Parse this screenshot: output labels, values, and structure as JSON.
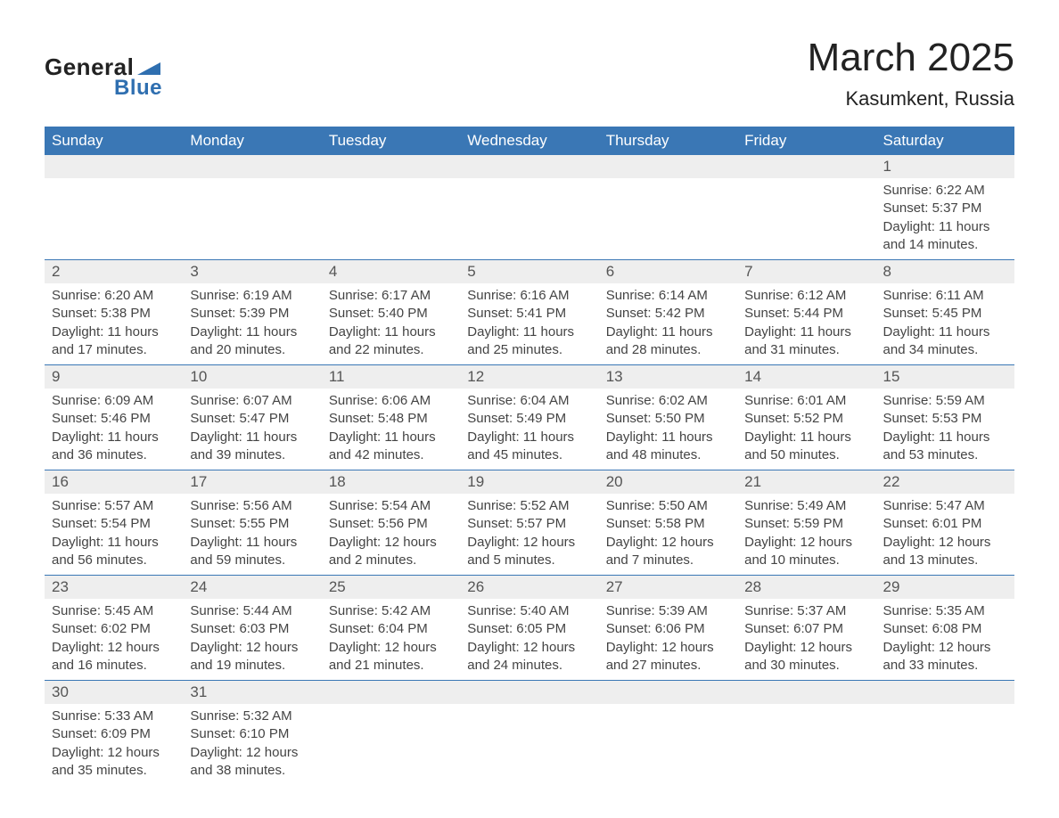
{
  "logo": {
    "text_general": "General",
    "text_blue": "Blue",
    "shape_color": "#2f6fb0"
  },
  "header": {
    "month_title": "March 2025",
    "location": "Kasumkent, Russia"
  },
  "weekday_headers": [
    "Sunday",
    "Monday",
    "Tuesday",
    "Wednesday",
    "Thursday",
    "Friday",
    "Saturday"
  ],
  "colors": {
    "header_bg": "#3a77b5",
    "header_text": "#ffffff",
    "daynum_bg": "#eeeeee",
    "border": "#3a77b5",
    "body_text": "#444444"
  },
  "weeks": [
    [
      null,
      null,
      null,
      null,
      null,
      null,
      {
        "n": "1",
        "sr": "Sunrise: 6:22 AM",
        "ss": "Sunset: 5:37 PM",
        "dl": "Daylight: 11 hours and 14 minutes."
      }
    ],
    [
      {
        "n": "2",
        "sr": "Sunrise: 6:20 AM",
        "ss": "Sunset: 5:38 PM",
        "dl": "Daylight: 11 hours and 17 minutes."
      },
      {
        "n": "3",
        "sr": "Sunrise: 6:19 AM",
        "ss": "Sunset: 5:39 PM",
        "dl": "Daylight: 11 hours and 20 minutes."
      },
      {
        "n": "4",
        "sr": "Sunrise: 6:17 AM",
        "ss": "Sunset: 5:40 PM",
        "dl": "Daylight: 11 hours and 22 minutes."
      },
      {
        "n": "5",
        "sr": "Sunrise: 6:16 AM",
        "ss": "Sunset: 5:41 PM",
        "dl": "Daylight: 11 hours and 25 minutes."
      },
      {
        "n": "6",
        "sr": "Sunrise: 6:14 AM",
        "ss": "Sunset: 5:42 PM",
        "dl": "Daylight: 11 hours and 28 minutes."
      },
      {
        "n": "7",
        "sr": "Sunrise: 6:12 AM",
        "ss": "Sunset: 5:44 PM",
        "dl": "Daylight: 11 hours and 31 minutes."
      },
      {
        "n": "8",
        "sr": "Sunrise: 6:11 AM",
        "ss": "Sunset: 5:45 PM",
        "dl": "Daylight: 11 hours and 34 minutes."
      }
    ],
    [
      {
        "n": "9",
        "sr": "Sunrise: 6:09 AM",
        "ss": "Sunset: 5:46 PM",
        "dl": "Daylight: 11 hours and 36 minutes."
      },
      {
        "n": "10",
        "sr": "Sunrise: 6:07 AM",
        "ss": "Sunset: 5:47 PM",
        "dl": "Daylight: 11 hours and 39 minutes."
      },
      {
        "n": "11",
        "sr": "Sunrise: 6:06 AM",
        "ss": "Sunset: 5:48 PM",
        "dl": "Daylight: 11 hours and 42 minutes."
      },
      {
        "n": "12",
        "sr": "Sunrise: 6:04 AM",
        "ss": "Sunset: 5:49 PM",
        "dl": "Daylight: 11 hours and 45 minutes."
      },
      {
        "n": "13",
        "sr": "Sunrise: 6:02 AM",
        "ss": "Sunset: 5:50 PM",
        "dl": "Daylight: 11 hours and 48 minutes."
      },
      {
        "n": "14",
        "sr": "Sunrise: 6:01 AM",
        "ss": "Sunset: 5:52 PM",
        "dl": "Daylight: 11 hours and 50 minutes."
      },
      {
        "n": "15",
        "sr": "Sunrise: 5:59 AM",
        "ss": "Sunset: 5:53 PM",
        "dl": "Daylight: 11 hours and 53 minutes."
      }
    ],
    [
      {
        "n": "16",
        "sr": "Sunrise: 5:57 AM",
        "ss": "Sunset: 5:54 PM",
        "dl": "Daylight: 11 hours and 56 minutes."
      },
      {
        "n": "17",
        "sr": "Sunrise: 5:56 AM",
        "ss": "Sunset: 5:55 PM",
        "dl": "Daylight: 11 hours and 59 minutes."
      },
      {
        "n": "18",
        "sr": "Sunrise: 5:54 AM",
        "ss": "Sunset: 5:56 PM",
        "dl": "Daylight: 12 hours and 2 minutes."
      },
      {
        "n": "19",
        "sr": "Sunrise: 5:52 AM",
        "ss": "Sunset: 5:57 PM",
        "dl": "Daylight: 12 hours and 5 minutes."
      },
      {
        "n": "20",
        "sr": "Sunrise: 5:50 AM",
        "ss": "Sunset: 5:58 PM",
        "dl": "Daylight: 12 hours and 7 minutes."
      },
      {
        "n": "21",
        "sr": "Sunrise: 5:49 AM",
        "ss": "Sunset: 5:59 PM",
        "dl": "Daylight: 12 hours and 10 minutes."
      },
      {
        "n": "22",
        "sr": "Sunrise: 5:47 AM",
        "ss": "Sunset: 6:01 PM",
        "dl": "Daylight: 12 hours and 13 minutes."
      }
    ],
    [
      {
        "n": "23",
        "sr": "Sunrise: 5:45 AM",
        "ss": "Sunset: 6:02 PM",
        "dl": "Daylight: 12 hours and 16 minutes."
      },
      {
        "n": "24",
        "sr": "Sunrise: 5:44 AM",
        "ss": "Sunset: 6:03 PM",
        "dl": "Daylight: 12 hours and 19 minutes."
      },
      {
        "n": "25",
        "sr": "Sunrise: 5:42 AM",
        "ss": "Sunset: 6:04 PM",
        "dl": "Daylight: 12 hours and 21 minutes."
      },
      {
        "n": "26",
        "sr": "Sunrise: 5:40 AM",
        "ss": "Sunset: 6:05 PM",
        "dl": "Daylight: 12 hours and 24 minutes."
      },
      {
        "n": "27",
        "sr": "Sunrise: 5:39 AM",
        "ss": "Sunset: 6:06 PM",
        "dl": "Daylight: 12 hours and 27 minutes."
      },
      {
        "n": "28",
        "sr": "Sunrise: 5:37 AM",
        "ss": "Sunset: 6:07 PM",
        "dl": "Daylight: 12 hours and 30 minutes."
      },
      {
        "n": "29",
        "sr": "Sunrise: 5:35 AM",
        "ss": "Sunset: 6:08 PM",
        "dl": "Daylight: 12 hours and 33 minutes."
      }
    ],
    [
      {
        "n": "30",
        "sr": "Sunrise: 5:33 AM",
        "ss": "Sunset: 6:09 PM",
        "dl": "Daylight: 12 hours and 35 minutes."
      },
      {
        "n": "31",
        "sr": "Sunrise: 5:32 AM",
        "ss": "Sunset: 6:10 PM",
        "dl": "Daylight: 12 hours and 38 minutes."
      },
      null,
      null,
      null,
      null,
      null
    ]
  ]
}
